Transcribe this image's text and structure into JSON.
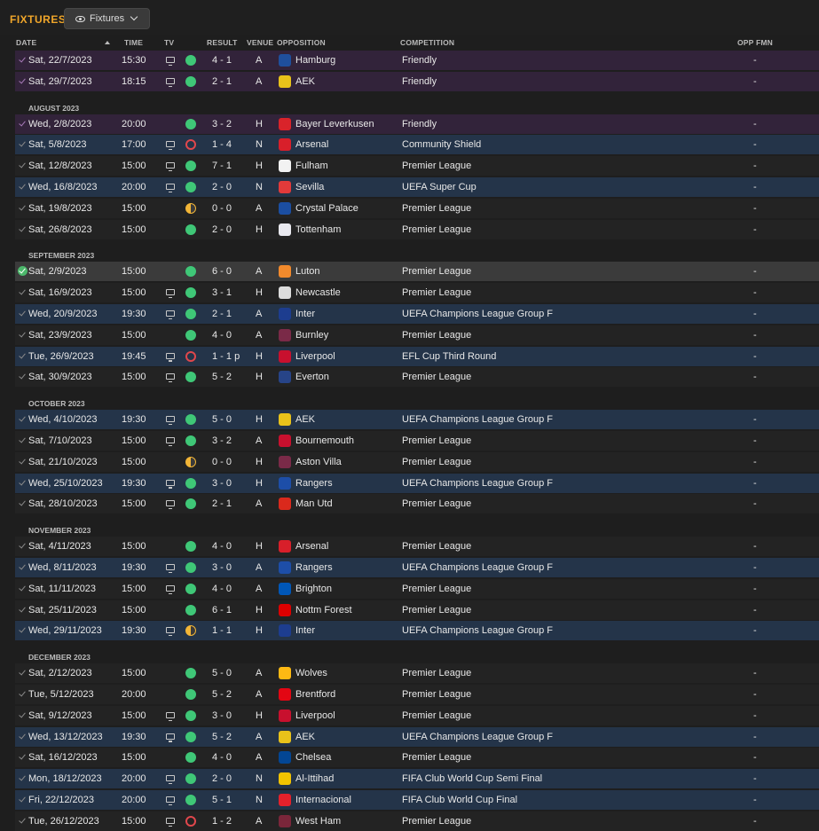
{
  "header": {
    "title": "FIXTURES",
    "view_button_label": "Fixtures"
  },
  "columns": {
    "date": "DATE",
    "time": "TIME",
    "tv": "TV",
    "result": "RESULT",
    "venue": "VENUE",
    "opposition": "OPPOSITION",
    "competition": "COMPETITION",
    "opp_fmn": "OPP FMN"
  },
  "colors": {
    "accent": "#f0a62a",
    "win": "#3fc777",
    "loss": "#e0474c",
    "draw": "#f2b537",
    "friendly_row": "#32233a",
    "continental_row": "#243449"
  },
  "rows": [
    {
      "kind": "fixture",
      "style": "friendly",
      "date": "Sat, 22/7/2023",
      "time": "15:30",
      "tv": true,
      "outcome": "win",
      "score": "4 - 1",
      "venue": "A",
      "opp": "Hamburg",
      "crest": "#1f4f9c",
      "comp": "Friendly",
      "fmn": "-"
    },
    {
      "kind": "fixture",
      "style": "friendly",
      "date": "Sat, 29/7/2023",
      "time": "18:15",
      "tv": true,
      "outcome": "win",
      "score": "2 - 1",
      "venue": "A",
      "opp": "AEK",
      "crest": "#e8c21a",
      "comp": "Friendly",
      "fmn": "-"
    },
    {
      "kind": "month",
      "label": "AUGUST 2023"
    },
    {
      "kind": "fixture",
      "style": "friendly",
      "date": "Wed, 2/8/2023",
      "time": "20:00",
      "tv": false,
      "outcome": "win",
      "score": "3 - 2",
      "venue": "H",
      "opp": "Bayer Leverkusen",
      "crest": "#d9232a",
      "comp": "Friendly",
      "fmn": "-"
    },
    {
      "kind": "fixture",
      "style": "alt",
      "date": "Sat, 5/8/2023",
      "time": "17:00",
      "tv": true,
      "outcome": "loss",
      "score": "1 - 4",
      "venue": "N",
      "opp": "Arsenal",
      "crest": "#d81f2a",
      "comp": "Community Shield",
      "fmn": "-"
    },
    {
      "kind": "fixture",
      "style": "normal",
      "date": "Sat, 12/8/2023",
      "time": "15:00",
      "tv": true,
      "outcome": "win",
      "score": "7 - 1",
      "venue": "H",
      "opp": "Fulham",
      "crest": "#f2f2f2",
      "comp": "Premier League",
      "fmn": "-"
    },
    {
      "kind": "fixture",
      "style": "alt",
      "date": "Wed, 16/8/2023",
      "time": "20:00",
      "tv": true,
      "outcome": "win",
      "score": "2 - 0",
      "venue": "N",
      "opp": "Sevilla",
      "crest": "#e23a3a",
      "comp": "UEFA Super Cup",
      "fmn": "-"
    },
    {
      "kind": "fixture",
      "style": "normal",
      "date": "Sat, 19/8/2023",
      "time": "15:00",
      "tv": false,
      "outcome": "draw",
      "score": "0 - 0",
      "venue": "A",
      "opp": "Crystal Palace",
      "crest": "#1b4ea1",
      "comp": "Premier League",
      "fmn": "-"
    },
    {
      "kind": "fixture",
      "style": "normal",
      "date": "Sat, 26/8/2023",
      "time": "15:00",
      "tv": false,
      "outcome": "win",
      "score": "2 - 0",
      "venue": "H",
      "opp": "Tottenham",
      "crest": "#e9e9ef",
      "comp": "Premier League",
      "fmn": "-"
    },
    {
      "kind": "month",
      "label": "SEPTEMBER 2023"
    },
    {
      "kind": "fixture",
      "style": "sel",
      "date": "Sat, 2/9/2023",
      "time": "15:00",
      "tv": false,
      "outcome": "win",
      "score": "6 - 0",
      "venue": "A",
      "opp": "Luton",
      "crest": "#f28a2c",
      "comp": "Premier League",
      "fmn": "-"
    },
    {
      "kind": "fixture",
      "style": "normal",
      "date": "Sat, 16/9/2023",
      "time": "15:00",
      "tv": true,
      "outcome": "win",
      "score": "3 - 1",
      "venue": "H",
      "opp": "Newcastle",
      "crest": "#dcdcdc",
      "comp": "Premier League",
      "fmn": "-"
    },
    {
      "kind": "fixture",
      "style": "alt",
      "date": "Wed, 20/9/2023",
      "time": "19:30",
      "tv": true,
      "outcome": "win",
      "score": "2 - 1",
      "venue": "A",
      "opp": "Inter",
      "crest": "#1d3d8f",
      "comp": "UEFA Champions League Group F",
      "fmn": "-"
    },
    {
      "kind": "fixture",
      "style": "normal",
      "date": "Sat, 23/9/2023",
      "time": "15:00",
      "tv": false,
      "outcome": "win",
      "score": "4 - 0",
      "venue": "A",
      "opp": "Burnley",
      "crest": "#7a2a48",
      "comp": "Premier League",
      "fmn": "-"
    },
    {
      "kind": "fixture",
      "style": "alt",
      "date": "Tue, 26/9/2023",
      "time": "19:45",
      "tv": true,
      "outcome": "loss",
      "score": "1 - 1 p",
      "venue": "H",
      "opp": "Liverpool",
      "crest": "#c8102e",
      "comp": "EFL Cup Third Round",
      "fmn": "-"
    },
    {
      "kind": "fixture",
      "style": "normal",
      "date": "Sat, 30/9/2023",
      "time": "15:00",
      "tv": true,
      "outcome": "win",
      "score": "5 - 2",
      "venue": "H",
      "opp": "Everton",
      "crest": "#274488",
      "comp": "Premier League",
      "fmn": "-"
    },
    {
      "kind": "month",
      "label": "OCTOBER 2023"
    },
    {
      "kind": "fixture",
      "style": "alt",
      "date": "Wed, 4/10/2023",
      "time": "19:30",
      "tv": true,
      "outcome": "win",
      "score": "5 - 0",
      "venue": "H",
      "opp": "AEK",
      "crest": "#e8c21a",
      "comp": "UEFA Champions League Group F",
      "fmn": "-"
    },
    {
      "kind": "fixture",
      "style": "normal",
      "date": "Sat, 7/10/2023",
      "time": "15:00",
      "tv": true,
      "outcome": "win",
      "score": "3 - 2",
      "venue": "A",
      "opp": "Bournemouth",
      "crest": "#c8102e",
      "comp": "Premier League",
      "fmn": "-"
    },
    {
      "kind": "fixture",
      "style": "normal",
      "date": "Sat, 21/10/2023",
      "time": "15:00",
      "tv": false,
      "outcome": "draw",
      "score": "0 - 0",
      "venue": "H",
      "opp": "Aston Villa",
      "crest": "#7a2a48",
      "comp": "Premier League",
      "fmn": "-"
    },
    {
      "kind": "fixture",
      "style": "alt",
      "date": "Wed, 25/10/2023",
      "time": "19:30",
      "tv": true,
      "outcome": "win",
      "score": "3 - 0",
      "venue": "H",
      "opp": "Rangers",
      "crest": "#1d4ea8",
      "comp": "UEFA Champions League Group F",
      "fmn": "-"
    },
    {
      "kind": "fixture",
      "style": "normal",
      "date": "Sat, 28/10/2023",
      "time": "15:00",
      "tv": true,
      "outcome": "win",
      "score": "2 - 1",
      "venue": "A",
      "opp": "Man Utd",
      "crest": "#da291c",
      "comp": "Premier League",
      "fmn": "-"
    },
    {
      "kind": "month",
      "label": "NOVEMBER 2023"
    },
    {
      "kind": "fixture",
      "style": "normal",
      "date": "Sat, 4/11/2023",
      "time": "15:00",
      "tv": false,
      "outcome": "win",
      "score": "4 - 0",
      "venue": "H",
      "opp": "Arsenal",
      "crest": "#d81f2a",
      "comp": "Premier League",
      "fmn": "-"
    },
    {
      "kind": "fixture",
      "style": "alt",
      "date": "Wed, 8/11/2023",
      "time": "19:30",
      "tv": true,
      "outcome": "win",
      "score": "3 - 0",
      "venue": "A",
      "opp": "Rangers",
      "crest": "#1d4ea8",
      "comp": "UEFA Champions League Group F",
      "fmn": "-"
    },
    {
      "kind": "fixture",
      "style": "normal",
      "date": "Sat, 11/11/2023",
      "time": "15:00",
      "tv": true,
      "outcome": "win",
      "score": "4 - 0",
      "venue": "A",
      "opp": "Brighton",
      "crest": "#0057b8",
      "comp": "Premier League",
      "fmn": "-"
    },
    {
      "kind": "fixture",
      "style": "normal",
      "date": "Sat, 25/11/2023",
      "time": "15:00",
      "tv": false,
      "outcome": "win",
      "score": "6 - 1",
      "venue": "H",
      "opp": "Nottm Forest",
      "crest": "#dd0000",
      "comp": "Premier League",
      "fmn": "-"
    },
    {
      "kind": "fixture",
      "style": "alt",
      "date": "Wed, 29/11/2023",
      "time": "19:30",
      "tv": true,
      "outcome": "draw",
      "score": "1 - 1",
      "venue": "H",
      "opp": "Inter",
      "crest": "#1d3d8f",
      "comp": "UEFA Champions League Group F",
      "fmn": "-"
    },
    {
      "kind": "month",
      "label": "DECEMBER 2023"
    },
    {
      "kind": "fixture",
      "style": "normal",
      "date": "Sat, 2/12/2023",
      "time": "15:00",
      "tv": false,
      "outcome": "win",
      "score": "5 - 0",
      "venue": "A",
      "opp": "Wolves",
      "crest": "#fdb913",
      "comp": "Premier League",
      "fmn": "-"
    },
    {
      "kind": "fixture",
      "style": "normal",
      "date": "Tue, 5/12/2023",
      "time": "20:00",
      "tv": false,
      "outcome": "win",
      "score": "5 - 2",
      "venue": "A",
      "opp": "Brentford",
      "crest": "#e30613",
      "comp": "Premier League",
      "fmn": "-"
    },
    {
      "kind": "fixture",
      "style": "normal",
      "date": "Sat, 9/12/2023",
      "time": "15:00",
      "tv": true,
      "outcome": "win",
      "score": "3 - 0",
      "venue": "H",
      "opp": "Liverpool",
      "crest": "#c8102e",
      "comp": "Premier League",
      "fmn": "-"
    },
    {
      "kind": "fixture",
      "style": "alt",
      "date": "Wed, 13/12/2023",
      "time": "19:30",
      "tv": true,
      "outcome": "win",
      "score": "5 - 2",
      "venue": "A",
      "opp": "AEK",
      "crest": "#e8c21a",
      "comp": "UEFA Champions League Group F",
      "fmn": "-"
    },
    {
      "kind": "fixture",
      "style": "normal",
      "date": "Sat, 16/12/2023",
      "time": "15:00",
      "tv": false,
      "outcome": "win",
      "score": "4 - 0",
      "venue": "A",
      "opp": "Chelsea",
      "crest": "#034694",
      "comp": "Premier League",
      "fmn": "-"
    },
    {
      "kind": "fixture",
      "style": "alt",
      "date": "Mon, 18/12/2023",
      "time": "20:00",
      "tv": true,
      "outcome": "win",
      "score": "2 - 0",
      "venue": "N",
      "opp": "Al-Ittihad",
      "crest": "#f2c300",
      "comp": "FIFA Club World Cup Semi Final",
      "fmn": "-"
    },
    {
      "kind": "fixture",
      "style": "alt",
      "date": "Fri, 22/12/2023",
      "time": "20:00",
      "tv": true,
      "outcome": "win",
      "score": "5 - 1",
      "venue": "N",
      "opp": "Internacional",
      "crest": "#e4212b",
      "comp": "FIFA Club World Cup Final",
      "fmn": "-"
    },
    {
      "kind": "fixture",
      "style": "normal",
      "date": "Tue, 26/12/2023",
      "time": "15:00",
      "tv": true,
      "outcome": "loss",
      "score": "1 - 2",
      "venue": "A",
      "opp": "West Ham",
      "crest": "#7a263a",
      "comp": "Premier League",
      "fmn": "-"
    }
  ]
}
